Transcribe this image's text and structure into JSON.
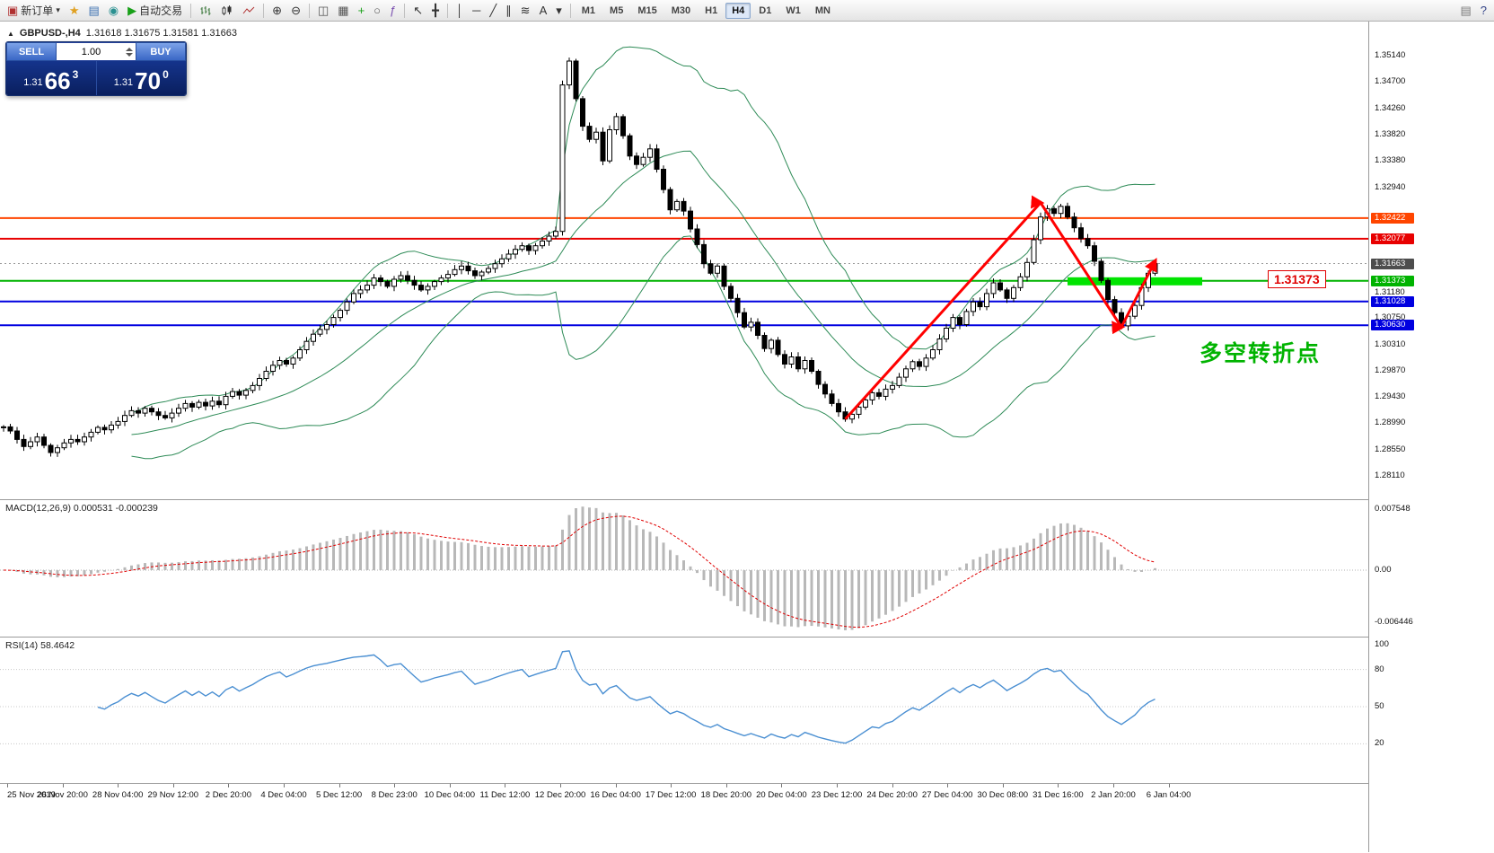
{
  "toolbar": {
    "items": [
      {
        "type": "button",
        "name": "new-order-button",
        "glyph": "▣",
        "glyph_color": "#b03030",
        "label": "新订单",
        "caret": true
      },
      {
        "type": "icon",
        "name": "favorites-icon",
        "glyph": "★",
        "glyph_color": "#e0a020"
      },
      {
        "type": "icon",
        "name": "charts-profile-icon",
        "glyph": "▤",
        "glyph_color": "#3a6fb0"
      },
      {
        "type": "icon",
        "name": "community-icon",
        "glyph": "◉",
        "glyph_color": "#2a9090"
      },
      {
        "type": "button",
        "name": "autotrading-button",
        "glyph": "▶",
        "glyph_color": "#18a018",
        "label": "自动交易"
      },
      {
        "type": "sep"
      },
      {
        "type": "svgicon",
        "name": "bar-chart-icon",
        "icon": "bars"
      },
      {
        "type": "svgicon",
        "name": "candlestick-chart-icon",
        "icon": "candles"
      },
      {
        "type": "svgicon",
        "name": "line-chart-icon",
        "icon": "line"
      },
      {
        "type": "sep"
      },
      {
        "type": "icon",
        "name": "zoom-in-icon",
        "glyph": "⊕",
        "glyph_color": "#333333"
      },
      {
        "type": "icon",
        "name": "zoom-out-icon",
        "glyph": "⊖",
        "glyph_color": "#333333"
      },
      {
        "type": "sep"
      },
      {
        "type": "icon",
        "name": "tile-windows-icon",
        "glyph": "◫",
        "glyph_color": "#555555"
      },
      {
        "type": "icon",
        "name": "cascade-windows-icon",
        "glyph": "▦",
        "glyph_color": "#555555"
      },
      {
        "type": "icon",
        "name": "new-chart-icon",
        "glyph": "+",
        "glyph_color": "#18a018"
      },
      {
        "type": "icon",
        "name": "cycle-icon",
        "glyph": "○",
        "glyph_color": "#555555"
      },
      {
        "type": "icon",
        "name": "indicators-icon",
        "glyph": "ƒ",
        "glyph_color": "#7a4fb0"
      },
      {
        "type": "sep"
      },
      {
        "type": "icon",
        "name": "cursor-icon",
        "glyph": "↖",
        "glyph_color": "#333333"
      },
      {
        "type": "icon",
        "name": "crosshair-icon",
        "glyph": "╋",
        "glyph_color": "#333333"
      },
      {
        "type": "sep"
      },
      {
        "type": "icon",
        "name": "vertical-line-icon",
        "glyph": "│",
        "glyph_color": "#333333"
      },
      {
        "type": "icon",
        "name": "horizontal-line-icon",
        "glyph": "─",
        "glyph_color": "#333333"
      },
      {
        "type": "icon",
        "name": "trendline-icon",
        "glyph": "╱",
        "glyph_color": "#333333"
      },
      {
        "type": "icon",
        "name": "channel-icon",
        "glyph": "∥",
        "glyph_color": "#333333"
      },
      {
        "type": "icon",
        "name": "fibonacci-icon",
        "glyph": "≋",
        "glyph_color": "#333333"
      },
      {
        "type": "icon",
        "name": "text-icon",
        "glyph": "A",
        "glyph_color": "#333333"
      },
      {
        "type": "icon",
        "name": "arrows-dropdown-icon",
        "glyph": "▾",
        "glyph_color": "#333333"
      },
      {
        "type": "sep"
      }
    ],
    "timeframes": [
      {
        "label": "M1"
      },
      {
        "label": "M5"
      },
      {
        "label": "M15"
      },
      {
        "label": "M30"
      },
      {
        "label": "H1"
      },
      {
        "label": "H4",
        "active": true
      },
      {
        "label": "D1"
      },
      {
        "label": "W1"
      },
      {
        "label": "MN"
      }
    ],
    "right_icons": [
      {
        "name": "window-list-icon",
        "glyph": "▤",
        "color": "#777777"
      },
      {
        "name": "help-icon",
        "glyph": "?",
        "color": "#334488"
      }
    ]
  },
  "trade_panel": {
    "sell_label": "SELL",
    "buy_label": "BUY",
    "volume": "1.00",
    "sell_price_small": "1.31",
    "sell_price_big": "66",
    "sell_price_sup": "3",
    "buy_price_small": "1.31",
    "buy_price_big": "70",
    "buy_price_sup": "0"
  },
  "chart": {
    "up_arrow": "▲",
    "title_symbol": "GBPUSD-,H4",
    "title_ohlc": "1.31618 1.31675 1.31581 1.31663"
  },
  "indicators": {
    "macd_label": "MACD(12,26,9)",
    "macd_values": "0.000531 -0.000239",
    "macd_scale": [
      "0.007548",
      "0.00",
      "-0.006446"
    ],
    "rsi_label": "RSI(14)",
    "rsi_value": "58.4642",
    "rsi_scale": [
      "100",
      "80",
      "50",
      "20"
    ]
  },
  "chart_data": {
    "type": "candlestick",
    "symbol": "GBPUSD",
    "timeframe": "H4",
    "closes": [
      1.2893,
      1.2886,
      1.2872,
      1.286,
      1.2868,
      1.2876,
      1.2862,
      1.285,
      1.2858,
      1.2866,
      1.2872,
      1.2868,
      1.2876,
      1.2884,
      1.2892,
      1.2888,
      1.2896,
      1.2902,
      1.2912,
      1.292,
      1.2916,
      1.2924,
      1.2918,
      1.2912,
      1.2908,
      1.2916,
      1.2924,
      1.2932,
      1.2926,
      1.2934,
      1.2928,
      1.2936,
      1.293,
      1.2944,
      1.2952,
      1.2946,
      1.2954,
      1.2962,
      1.2974,
      1.2986,
      1.2996,
      1.3004,
      1.2998,
      1.3008,
      1.3022,
      1.3036,
      1.3048,
      1.3056,
      1.3064,
      1.3076,
      1.3088,
      1.3102,
      1.3116,
      1.3122,
      1.313,
      1.3142,
      1.3136,
      1.3128,
      1.314,
      1.3146,
      1.3138,
      1.313,
      1.3122,
      1.3128,
      1.3136,
      1.3142,
      1.3148,
      1.3156,
      1.3162,
      1.3154,
      1.3146,
      1.3152,
      1.3158,
      1.3166,
      1.3174,
      1.3182,
      1.319,
      1.3196,
      1.3188,
      1.3196,
      1.3204,
      1.3212,
      1.322,
      1.3465,
      1.3505,
      1.3442,
      1.3396,
      1.3374,
      1.3386,
      1.3338,
      1.339,
      1.3412,
      1.338,
      1.3346,
      1.3332,
      1.3344,
      1.3358,
      1.3324,
      1.329,
      1.3256,
      1.327,
      1.3254,
      1.3224,
      1.3198,
      1.3166,
      1.315,
      1.3162,
      1.3128,
      1.3108,
      1.3084,
      1.306,
      1.3068,
      1.3046,
      1.3024,
      1.3038,
      1.3014,
      1.2998,
      1.301,
      1.299,
      1.3004,
      1.2986,
      1.2964,
      1.2948,
      1.2932,
      1.2918,
      1.2906,
      1.2914,
      1.2926,
      1.2938,
      1.295,
      1.2944,
      1.2956,
      1.2962,
      1.2976,
      1.299,
      1.3002,
      1.2994,
      1.3008,
      1.3022,
      1.304,
      1.3058,
      1.3076,
      1.3064,
      1.3086,
      1.3102,
      1.3094,
      1.3116,
      1.3134,
      1.3122,
      1.3108,
      1.3126,
      1.3144,
      1.3168,
      1.3206,
      1.3244,
      1.3258,
      1.325,
      1.3262,
      1.3244,
      1.3226,
      1.3208,
      1.3196,
      1.317,
      1.3138,
      1.3106,
      1.3084,
      1.3062,
      1.3078,
      1.3096,
      1.3126,
      1.315,
      1.31663
    ],
    "price_axis_labels": [
      1.3514,
      1.347,
      1.3426,
      1.3382,
      1.3338,
      1.3294,
      1.3118,
      1.3075,
      1.3031,
      1.2987,
      1.2943,
      1.2899,
      1.2855,
      1.2811
    ],
    "levels": [
      {
        "price": 1.32422,
        "color": "#ff4500"
      },
      {
        "price": 1.32077,
        "color": "#e80000"
      },
      {
        "price": 1.31373,
        "color": "#00b300"
      },
      {
        "price": 1.31028,
        "color": "#0000e0"
      },
      {
        "price": 1.3063,
        "color": "#0000e0"
      }
    ],
    "current_price": {
      "value": 1.31663,
      "color": "#4d4d4d"
    },
    "bollinger": {
      "period": 20,
      "deviation": 2,
      "color": "#2e8b57"
    },
    "zone": {
      "from_index": 158,
      "to_index": 178,
      "price": 1.31373,
      "color": "#00e400"
    },
    "zigzag": {
      "color": "#ff0000",
      "points": [
        {
          "i": 125,
          "p": 1.2906
        },
        {
          "i": 154,
          "p": 1.3268
        },
        {
          "i": 166,
          "p": 1.306
        },
        {
          "i": 171,
          "p": 1.317
        }
      ]
    },
    "callout": {
      "text": "1.31373"
    },
    "annotation": {
      "text": "多空转折点"
    },
    "macd": {
      "fast": 12,
      "slow": 26,
      "signal": 9,
      "histogram_color": "#b8b8b8",
      "signal_color": "#e00000"
    },
    "rsi": {
      "period": 14,
      "line_color": "#4a8fd2",
      "levels": [
        80,
        50,
        20
      ]
    },
    "date_labels": [
      "25 Nov 2019",
      "26 Nov 20:00",
      "28 Nov 04:00",
      "29 Nov 12:00",
      "2 Dec 20:00",
      "4 Dec 04:00",
      "5 Dec 12:00",
      "8 Dec 23:00",
      "10 Dec 04:00",
      "11 Dec 12:00",
      "12 Dec 20:00",
      "16 Dec 04:00",
      "17 Dec 12:00",
      "18 Dec 20:00",
      "20 Dec 04:00",
      "23 Dec 12:00",
      "24 Dec 20:00",
      "27 Dec 04:00",
      "30 Dec 08:00",
      "31 Dec 16:00",
      "2 Jan 20:00",
      "6 Jan 04:00"
    ]
  }
}
